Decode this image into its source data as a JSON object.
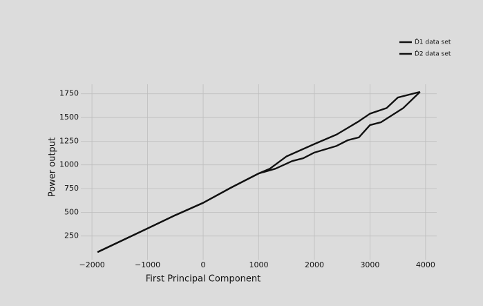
{
  "chart_data": {
    "type": "line",
    "xlabel": "First Principal Component",
    "ylabel": "Power output",
    "series": [
      {
        "name": "D̂1 data set",
        "color": "#111111",
        "x": [
          -1900,
          -1000,
          -500,
          0,
          500,
          1000,
          1200,
          1500,
          2000,
          2400,
          2800,
          3000,
          3300,
          3500,
          3900
        ],
        "values": [
          80,
          330,
          470,
          600,
          760,
          910,
          960,
          1090,
          1220,
          1320,
          1460,
          1540,
          1600,
          1710,
          1770
        ]
      },
      {
        "name": "D̂2 data set",
        "color": "#111111",
        "x": [
          -1900,
          -1000,
          -500,
          0,
          500,
          1000,
          1300,
          1600,
          1800,
          2000,
          2400,
          2600,
          2800,
          3000,
          3200,
          3600,
          3900
        ],
        "values": [
          80,
          330,
          470,
          600,
          760,
          910,
          960,
          1040,
          1070,
          1130,
          1200,
          1260,
          1290,
          1420,
          1450,
          1600,
          1770
        ]
      }
    ],
    "xlim": [
      -2200,
      4200
    ],
    "xticks": [
      {
        "value": -2000,
        "label": "−2000"
      },
      {
        "value": -1000,
        "label": "−1000"
      },
      0,
      1000,
      2000,
      3000,
      4000
    ],
    "ylim": [
      0,
      1850
    ],
    "yticks": [
      250,
      500,
      750,
      1000,
      1250,
      1500,
      1750
    ],
    "grid": true,
    "legend": "upper right"
  }
}
